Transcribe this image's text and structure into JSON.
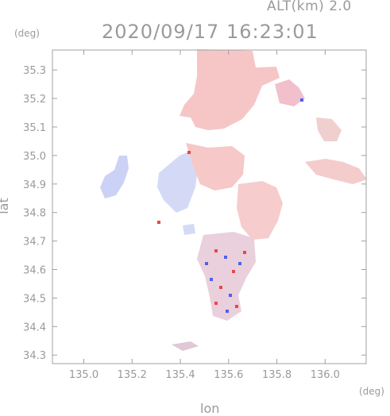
{
  "header": {
    "altitude_label": "ALT(km)  2.0",
    "datetime": "2020/09/17 16:23:01"
  },
  "axes": {
    "y_unit": "(deg)",
    "x_unit": "(deg)",
    "y_label": "lat",
    "x_label": "lon",
    "x_ticks": [
      "135.0",
      "135.2",
      "135.4",
      "135.6",
      "135.8",
      "136.0"
    ],
    "y_ticks": [
      "35.3",
      "35.2",
      "35.1",
      "35.0",
      "34.9",
      "34.8",
      "34.7",
      "34.6",
      "34.5",
      "34.4",
      "34.3"
    ],
    "x_range": [
      134.87,
      136.17
    ],
    "y_range": [
      34.27,
      35.37
    ]
  },
  "colors": {
    "frame": "#a0a0a0",
    "approaching": "#c8cff8",
    "receding": "#f6c8c8",
    "strong_receding": "#e84848",
    "strong_approaching": "#5060e8"
  }
}
